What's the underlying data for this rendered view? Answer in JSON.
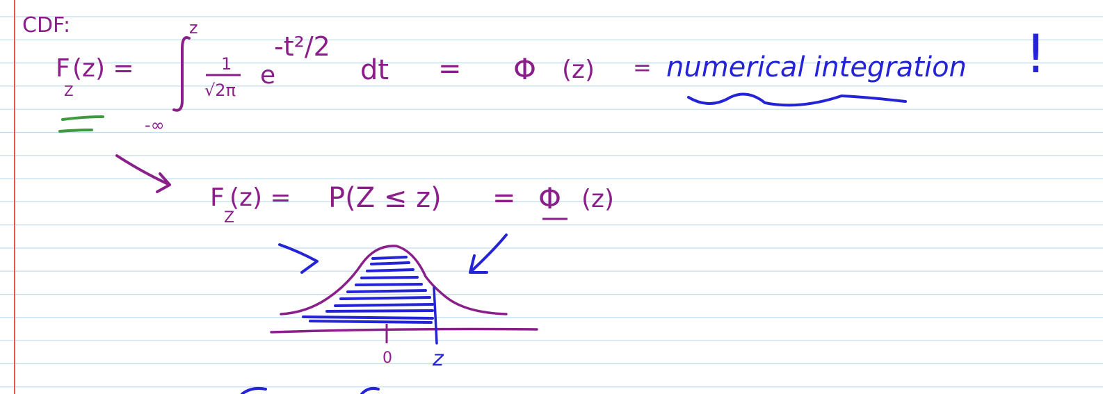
{
  "colors": {
    "rule": "#bfdcef",
    "margin": "#e8534f",
    "ink_purple": "#8a1f8a",
    "ink_blue": "#2424d6",
    "ink_green": "#3f9a3f"
  },
  "note": {
    "heading": "CDF:",
    "line1": {
      "F": "F",
      "F_sub": "Z",
      "F_arg": "(z) =",
      "upper_limit": "z",
      "lower_limit": "-∞",
      "frac_num": "1",
      "frac_den": "√2π",
      "e": "e",
      "exponent": "-t²/2",
      "dt": "dt",
      "eq1": "=",
      "phi": "Φ",
      "phi_arg": "(z)",
      "eq2": "=",
      "numerical": "numerical integration",
      "bang": "!"
    },
    "line2": {
      "F": "F",
      "F_sub": "Z",
      "lhs_arg": "(z) =",
      "prob": "P(Z ≤ z)",
      "eq": "=",
      "phi": "Φ",
      "phi_arg": "(z)"
    },
    "sketch": {
      "zero_label": "0",
      "z_label": "z"
    }
  }
}
